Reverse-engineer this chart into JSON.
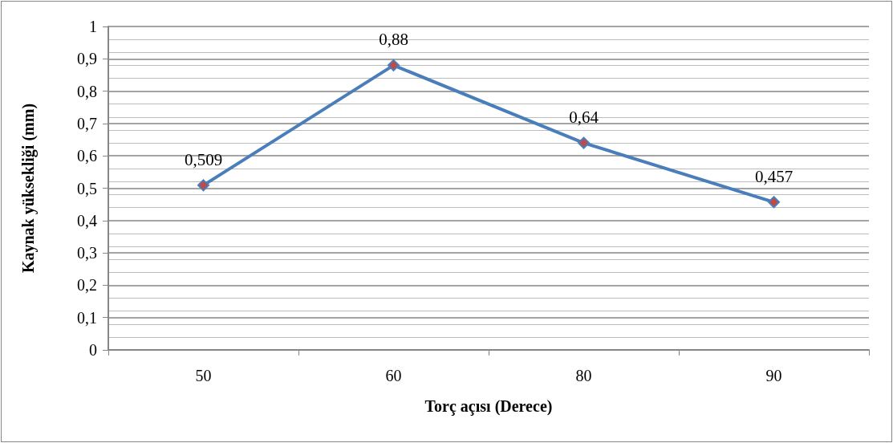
{
  "chart_data": {
    "type": "line",
    "xlabel": "Torç açısı (Derece)",
    "ylabel": "Kaynak yüksekliği (mm)",
    "categories": [
      "50",
      "60",
      "80",
      "90"
    ],
    "series": [
      {
        "color": "#4a7ebb",
        "values": [
          0.509,
          0.88,
          0.64,
          0.457
        ],
        "value_labels": [
          "0,509",
          "0,88",
          "0,64",
          "0,457"
        ]
      }
    ],
    "ylim": [
      0,
      1
    ],
    "yticks": [
      0,
      {
        "value": 0.1,
        "label": "0,1"
      },
      {
        "value": 0.2,
        "label": "0,2"
      },
      {
        "value": 0.3,
        "label": "0,3"
      },
      {
        "value": 0.4,
        "label": "0,4"
      },
      {
        "value": 0.5,
        "label": "0,5"
      },
      {
        "value": 0.6,
        "label": "0,6"
      },
      {
        "value": 0.7,
        "label": "0,7"
      },
      {
        "value": 0.8,
        "label": "0,8"
      },
      {
        "value": 0.9,
        "label": "0,9"
      },
      1
    ],
    "grid": "y",
    "marker": "diamond",
    "line_style": "solid"
  }
}
